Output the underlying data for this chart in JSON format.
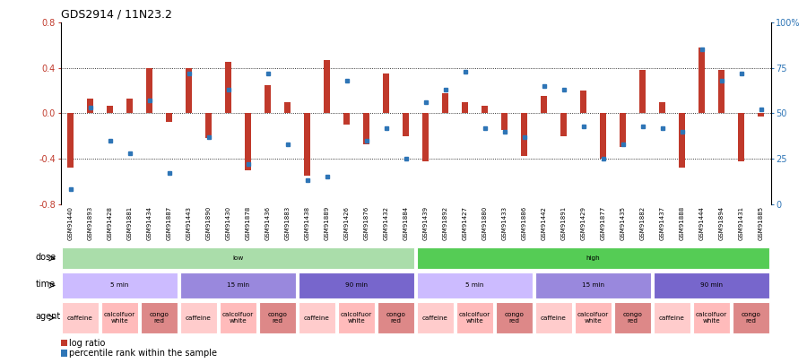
{
  "title": "GDS2914 / 11N23.2",
  "samples": [
    "GSM91440",
    "GSM91893",
    "GSM91428",
    "GSM91881",
    "GSM91434",
    "GSM91887",
    "GSM91443",
    "GSM91890",
    "GSM91430",
    "GSM91878",
    "GSM91436",
    "GSM91883",
    "GSM91438",
    "GSM91889",
    "GSM91426",
    "GSM91876",
    "GSM91432",
    "GSM91884",
    "GSM91439",
    "GSM91892",
    "GSM91427",
    "GSM91880",
    "GSM91433",
    "GSM91886",
    "GSM91442",
    "GSM91891",
    "GSM91429",
    "GSM91877",
    "GSM91435",
    "GSM91882",
    "GSM91437",
    "GSM91888",
    "GSM91444",
    "GSM91894",
    "GSM91431",
    "GSM91885"
  ],
  "log_ratio": [
    -0.48,
    0.13,
    0.07,
    0.13,
    0.4,
    -0.08,
    0.4,
    -0.22,
    0.45,
    -0.5,
    0.25,
    0.1,
    -0.55,
    0.47,
    -0.1,
    -0.27,
    0.35,
    -0.2,
    -0.42,
    0.18,
    0.1,
    0.07,
    -0.15,
    -0.38,
    0.15,
    -0.2,
    0.2,
    -0.4,
    -0.3,
    0.38,
    0.1,
    -0.48,
    0.58,
    0.38,
    -0.42,
    -0.03
  ],
  "percentile_rank": [
    8,
    53,
    35,
    28,
    57,
    17,
    72,
    37,
    63,
    22,
    72,
    33,
    13,
    15,
    68,
    35,
    42,
    25,
    56,
    63,
    73,
    42,
    40,
    37,
    65,
    63,
    43,
    25,
    33,
    43,
    42,
    40,
    85,
    68,
    72,
    52
  ],
  "bar_color": "#c0392b",
  "dot_color": "#2e75b6",
  "ylim": [
    -0.8,
    0.8
  ],
  "yticks": [
    -0.8,
    -0.4,
    0.0,
    0.4,
    0.8
  ],
  "y2ticks": [
    0,
    25,
    50,
    75,
    100
  ],
  "y2ticklabels": [
    "0",
    "25",
    "50",
    "75",
    "100%"
  ],
  "hlines": [
    0.4,
    0.0,
    -0.4
  ],
  "dose_low_color": "#aaddaa",
  "dose_high_color": "#55cc55",
  "time_colors": [
    "#ccbbff",
    "#9988dd",
    "#7766cc"
  ],
  "agent_colors": [
    "#ffcccc",
    "#ffbbbb",
    "#dd8888"
  ],
  "plot_bg": "#ffffff",
  "fig_bg": "#ffffff",
  "xtick_bg": "#dddddd"
}
